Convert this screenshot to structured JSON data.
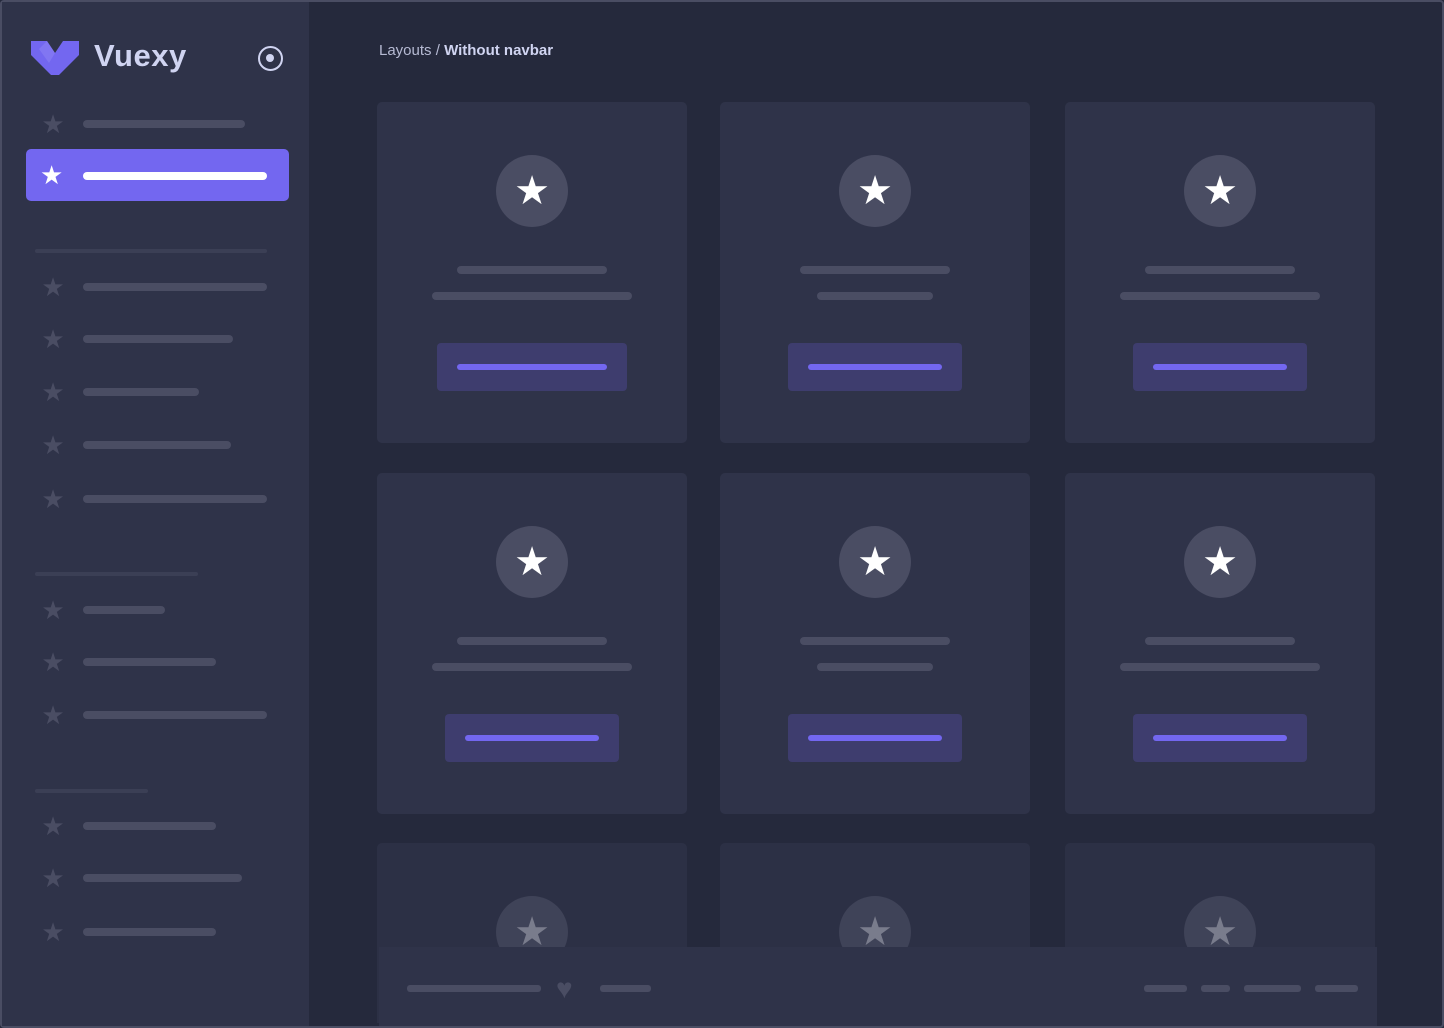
{
  "app": {
    "brand": "Vuexy",
    "accent": "#7367f0"
  },
  "breadcrumb": {
    "parent": "Layouts",
    "separator": "/",
    "current": "Without navbar"
  },
  "icons": {
    "logo": "vuexy-logo",
    "pin": "radio-circle-icon",
    "nav": "star-icon",
    "card": "star-icon",
    "footer": "heart-icon"
  },
  "sidebar": {
    "active_index": 1
  }
}
